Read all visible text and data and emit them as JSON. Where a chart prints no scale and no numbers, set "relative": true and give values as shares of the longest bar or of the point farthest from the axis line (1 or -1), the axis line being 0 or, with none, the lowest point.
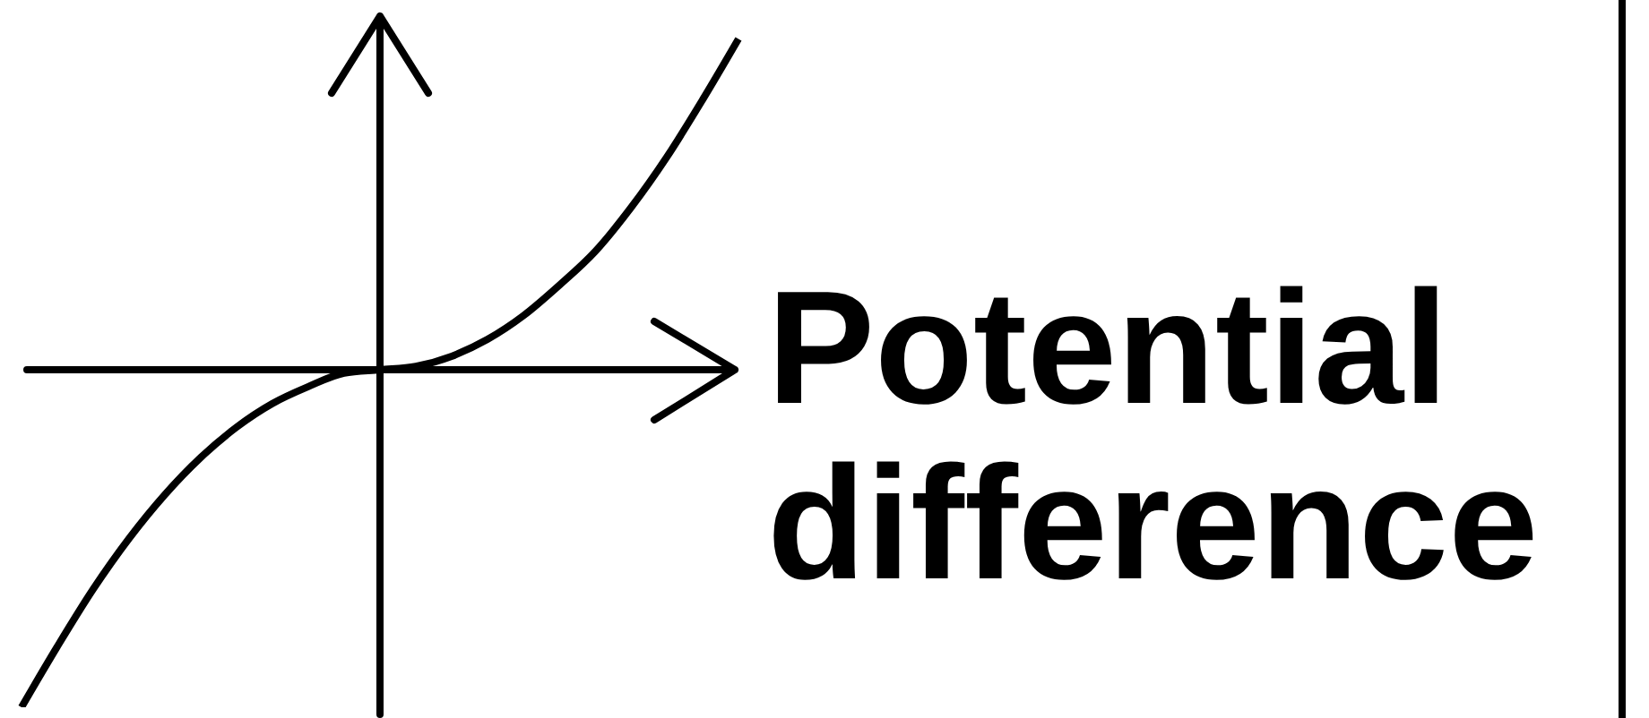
{
  "chart_data": {
    "type": "line",
    "xlabel": "Potential difference",
    "relative": true,
    "categories": [
      null,
      null,
      null,
      null,
      null,
      null,
      null,
      null,
      null,
      null,
      null,
      null,
      null,
      null,
      null,
      null,
      null,
      null,
      null,
      null,
      null
    ],
    "series": [
      {
        "color": "#000000",
        "values": [
          -1,
          -0.82,
          -0.65,
          -0.5,
          -0.37,
          -0.26,
          -0.17,
          -0.1,
          -0.05,
          -0.01,
          0,
          0.01,
          0.04,
          0.09,
          0.16,
          0.25,
          0.35,
          0.48,
          0.63,
          0.8,
          0.98
        ]
      }
    ],
    "marker": "none"
  }
}
